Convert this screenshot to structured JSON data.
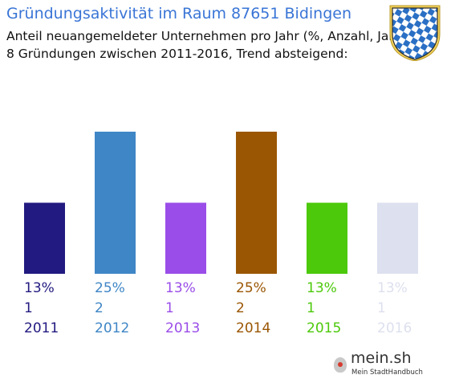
{
  "header": {
    "title": "Gründungsaktivität im Raum 87651 Bidingen",
    "subtitle": "Anteil neuangemeldeter Unternehmen pro Jahr (%, Anzahl, Jahr)",
    "summary": "8 Gründungen zwischen 2011-2016, Trend absteigend:"
  },
  "brand": {
    "name": "mein.sh",
    "tagline": "Mein StadtHandbuch"
  },
  "emblem": {
    "icon": "bavaria-coat-of-arms-icon",
    "colors": [
      "#2a6fc4",
      "#ffffff",
      "#f2d15a"
    ]
  },
  "chart_data": {
    "type": "bar",
    "categories": [
      "2011",
      "2012",
      "2013",
      "2014",
      "2015",
      "2016"
    ],
    "values": [
      1,
      2,
      1,
      2,
      1,
      1
    ],
    "percent_labels": [
      "13%",
      "25%",
      "13%",
      "25%",
      "13%",
      "13%"
    ],
    "count_labels": [
      "1",
      "2",
      "1",
      "2",
      "1",
      "1"
    ],
    "colors": [
      "#221a80",
      "#3f86c6",
      "#9a4de8",
      "#9a5603",
      "#4cc90b",
      "#dde0ee"
    ],
    "ylim": [
      0,
      2
    ]
  }
}
